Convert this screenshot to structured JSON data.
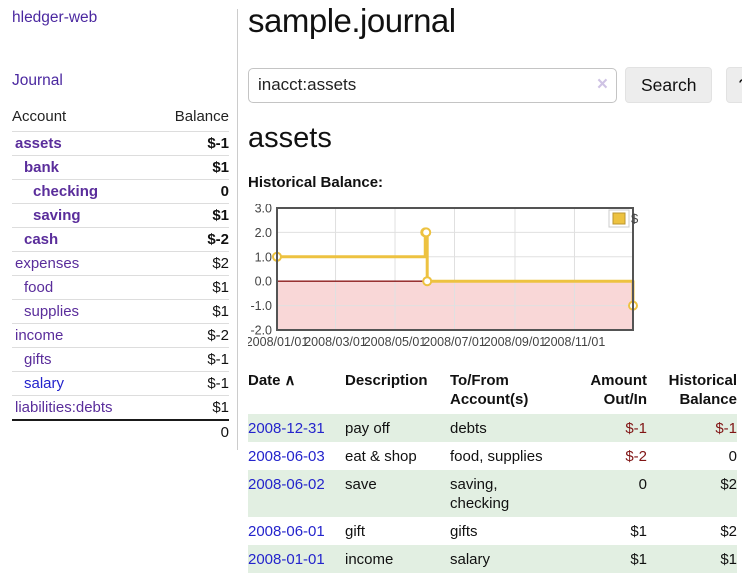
{
  "sidebar": {
    "app_title": "hledger-web",
    "nav": {
      "journal": "Journal"
    },
    "table": {
      "headers": {
        "account": "Account",
        "balance": "Balance"
      },
      "accounts": [
        {
          "name": "assets",
          "balance": "$-1"
        },
        {
          "name": "bank",
          "balance": "$1"
        },
        {
          "name": "checking",
          "balance": "0"
        },
        {
          "name": "saving",
          "balance": "$1"
        },
        {
          "name": "cash",
          "balance": "$-2"
        },
        {
          "name": "expenses",
          "balance": "$2"
        },
        {
          "name": "food",
          "balance": "$1"
        },
        {
          "name": "supplies",
          "balance": "$1"
        },
        {
          "name": "income",
          "balance": "$-2"
        },
        {
          "name": "gifts",
          "balance": "$-1"
        },
        {
          "name": "salary",
          "balance": "$-1"
        },
        {
          "name": "liabilities:debts",
          "balance": "$1"
        }
      ],
      "total": "0"
    }
  },
  "header": {
    "title": "sample.journal"
  },
  "search": {
    "query": "inacct:assets",
    "clear_icon": "×",
    "button": "Search",
    "help_button": "?"
  },
  "account_page": {
    "heading": "assets",
    "chart_label": "Historical Balance:"
  },
  "chart_data": {
    "type": "line",
    "step": true,
    "title": "Historical Balance:",
    "series": [
      {
        "name": "$",
        "color": "#EDC240",
        "points": [
          [
            "2008-01-01",
            1
          ],
          [
            "2008-06-01",
            2
          ],
          [
            "2008-06-02",
            2
          ],
          [
            "2008-06-03",
            0
          ],
          [
            "2008-12-31",
            -1
          ]
        ]
      }
    ],
    "ylim": [
      -2.0,
      3.0
    ],
    "yticks": [
      3.0,
      2.0,
      1.0,
      0.0,
      -1.0,
      -2.0
    ],
    "xrange": [
      "2008-01-01",
      "2008-12-31"
    ],
    "xticks": [
      "2008/01/01",
      "2008/03/01",
      "2008/05/01",
      "2008/07/01",
      "2008/09/01",
      "2008/11/01"
    ],
    "legend_position": "top-right",
    "grid": true,
    "negative_region_color": "#f9d7d7",
    "zero_line_color": "#8b1a1a",
    "border_color": "#545454"
  },
  "register": {
    "headers": {
      "date": "Date",
      "sort_icon": "∧",
      "description": "Description",
      "accounts": "To/From\nAccount(s)",
      "amount": "Amount\nOut/In",
      "balance": "Historical\nBalance"
    },
    "rows": [
      {
        "date": "2008-12-31",
        "description": "pay off",
        "accounts": "debts",
        "amount": "$-1",
        "balance": "$-1"
      },
      {
        "date": "2008-06-03",
        "description": "eat & shop",
        "accounts": "food, supplies",
        "amount": "$-2",
        "balance": "0"
      },
      {
        "date": "2008-06-02",
        "description": "save",
        "accounts": "saving, checking",
        "amount": "0",
        "balance": "$2"
      },
      {
        "date": "2008-06-01",
        "description": "gift",
        "accounts": "gifts",
        "amount": "$1",
        "balance": "$2"
      },
      {
        "date": "2008-01-01",
        "description": "income",
        "accounts": "salary",
        "amount": "$1",
        "balance": "$1"
      }
    ]
  },
  "colors": {
    "link_purple": "#5a2d9b",
    "link_blue": "#2424cc",
    "negative_strong": "#8b1717",
    "negative_dim": "#c98c8c",
    "row_stripe_green": "#e2efe2",
    "chart_gold": "#EDC240",
    "chart_negative_fill": "#f9d7d7",
    "chart_zero_line": "#8b1a1a"
  }
}
